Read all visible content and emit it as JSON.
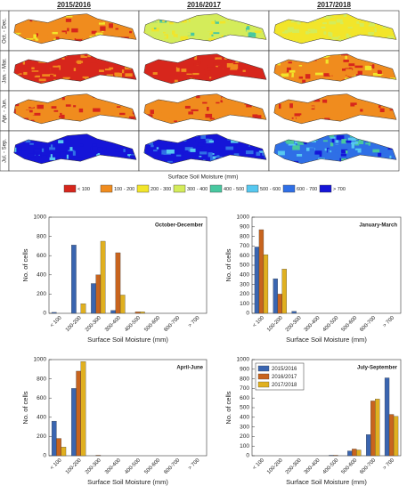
{
  "maps": {
    "columns": [
      "2015/2016",
      "2016/2017",
      "2017/2018"
    ],
    "rows": [
      "Oct. - Dec.",
      "Jan. - Mar.",
      "Apr. - Jun.",
      "Jul. - Sep."
    ],
    "caption": "Surface Soil Moisture (mm)",
    "legend": [
      {
        "label": "< 100",
        "color": "#d7261c"
      },
      {
        "label": "100 - 200",
        "color": "#f08c1e"
      },
      {
        "label": "200 - 300",
        "color": "#f2e52a"
      },
      {
        "label": "300 - 400",
        "color": "#d4ec5a"
      },
      {
        "label": "400 - 500",
        "color": "#48c8a0"
      },
      {
        "label": "500 - 600",
        "color": "#56c8f0"
      },
      {
        "label": "600 - 700",
        "color": "#2f6fe6"
      },
      {
        "label": "> 700",
        "color": "#1515d8"
      }
    ]
  },
  "chart_data": [
    {
      "type": "bar",
      "title": "October-December",
      "xlabel": "Surface Soil Moisture (mm)",
      "ylabel": "No. of cells",
      "categories": [
        "< 100",
        "100-200",
        "200-300",
        "300-400",
        "400-500",
        "500-600",
        "600-700",
        "> 700"
      ],
      "series": [
        {
          "color": "#3a65b0",
          "values": [
            10,
            710,
            310,
            30,
            0,
            0,
            0,
            0
          ]
        },
        {
          "color": "#c8641e",
          "values": [
            0,
            0,
            400,
            630,
            15,
            0,
            0,
            0
          ]
        },
        {
          "color": "#e0b020",
          "values": [
            0,
            100,
            750,
            190,
            15,
            0,
            0,
            0
          ]
        }
      ],
      "ylim": [
        0,
        1000
      ],
      "yticks": [
        0,
        200,
        400,
        600,
        800,
        1000
      ]
    },
    {
      "type": "bar",
      "title": "January-March",
      "xlabel": "Surface Soil Moisture (mm)",
      "ylabel": "No. of cells",
      "categories": [
        "< 100",
        "100-200",
        "200-300",
        "300-400",
        "400-500",
        "500-600",
        "600-700",
        "> 700"
      ],
      "series": [
        {
          "color": "#3a65b0",
          "values": [
            690,
            360,
            20,
            0,
            0,
            0,
            0,
            0
          ]
        },
        {
          "color": "#c8641e",
          "values": [
            870,
            200,
            0,
            0,
            0,
            0,
            0,
            0
          ]
        },
        {
          "color": "#e0b020",
          "values": [
            610,
            460,
            0,
            0,
            0,
            0,
            0,
            0
          ]
        }
      ],
      "ylim": [
        0,
        1000
      ],
      "yticks": [
        0,
        100,
        200,
        300,
        400,
        500,
        600,
        700,
        800,
        900,
        1000
      ]
    },
    {
      "type": "bar",
      "title": "April-June",
      "xlabel": "Surface Soil Moisture (mm)",
      "ylabel": "No. of cells",
      "categories": [
        "< 100",
        "100-200",
        "200-300",
        "300-400",
        "400-500",
        "500-600",
        "600-700",
        "> 700"
      ],
      "series": [
        {
          "color": "#3a65b0",
          "values": [
            360,
            700,
            0,
            0,
            0,
            0,
            0,
            0
          ]
        },
        {
          "color": "#c8641e",
          "values": [
            180,
            880,
            5,
            0,
            0,
            0,
            0,
            0
          ]
        },
        {
          "color": "#e0b020",
          "values": [
            90,
            980,
            0,
            0,
            0,
            0,
            0,
            0
          ]
        }
      ],
      "ylim": [
        0,
        1000
      ],
      "yticks": [
        0,
        200,
        400,
        600,
        800,
        1000
      ]
    },
    {
      "type": "bar",
      "title": "July-September",
      "xlabel": "Surface Soil Moisture (mm)",
      "ylabel": "No. of cells",
      "categories": [
        "< 100",
        "100-200",
        "200-300",
        "300-400",
        "400-500",
        "500-600",
        "600-700",
        "> 700"
      ],
      "series": [
        {
          "name": "2015/2016",
          "color": "#3a65b0",
          "values": [
            0,
            0,
            0,
            0,
            5,
            50,
            220,
            810
          ]
        },
        {
          "name": "2016/2017",
          "color": "#c8641e",
          "values": [
            0,
            0,
            0,
            0,
            5,
            70,
            570,
            430
          ]
        },
        {
          "name": "2017/2018",
          "color": "#e0b020",
          "values": [
            0,
            0,
            0,
            0,
            0,
            60,
            590,
            410
          ]
        }
      ],
      "ylim": [
        0,
        1000
      ],
      "yticks": [
        0,
        100,
        200,
        300,
        400,
        500,
        600,
        700,
        800,
        900,
        1000
      ],
      "legend": "upper left"
    }
  ]
}
